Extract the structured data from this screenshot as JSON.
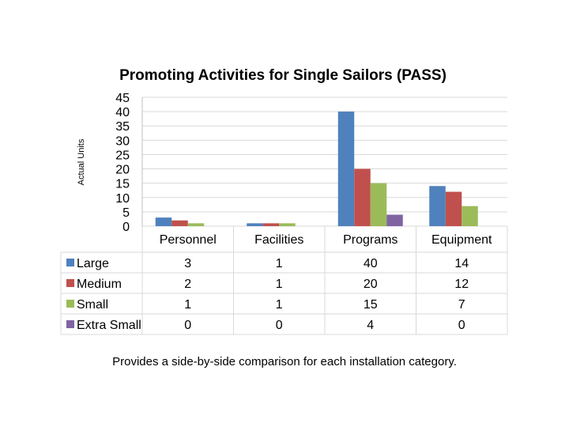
{
  "chart_data": {
    "type": "bar",
    "title": "Promoting Activities for Single Sailors (PASS)",
    "ylabel": "Actual Units",
    "xlabel": "",
    "ylim": [
      0,
      45
    ],
    "yticks": [
      0,
      5,
      10,
      15,
      20,
      25,
      30,
      35,
      40,
      45
    ],
    "categories": [
      "Personnel",
      "Facilities",
      "Programs",
      "Equipment"
    ],
    "series": [
      {
        "name": "Large",
        "color": "#4F81BD",
        "values": [
          3,
          1,
          40,
          14
        ]
      },
      {
        "name": "Medium",
        "color": "#C0504D",
        "values": [
          2,
          1,
          20,
          12
        ]
      },
      {
        "name": "Small",
        "color": "#9BBB59",
        "values": [
          1,
          1,
          15,
          7
        ]
      },
      {
        "name": "Extra Small",
        "color": "#8064A2",
        "values": [
          0,
          0,
          4,
          0
        ]
      }
    ],
    "grid": true,
    "legend": "data table"
  },
  "caption": "Provides a side-by-side comparison for each installation category."
}
